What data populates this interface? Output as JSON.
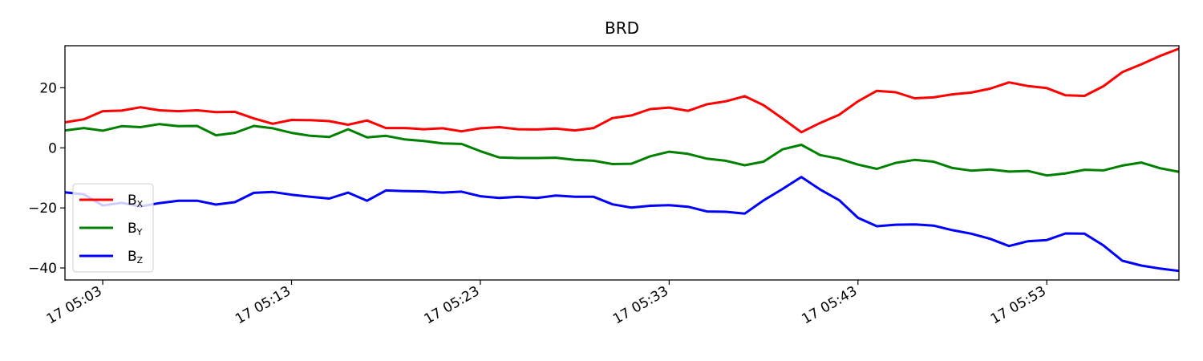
{
  "chart_data": {
    "type": "line",
    "title": "BRD",
    "xlabel": "",
    "ylabel": "",
    "x_ticks": [
      "17 05:03",
      "17 05:13",
      "17 05:23",
      "17 05:33",
      "17 05:43",
      "17 05:53"
    ],
    "y_ticks": [
      20,
      0,
      -20,
      -40
    ],
    "ylim": [
      -44,
      34
    ],
    "grid": false,
    "legend_position": "lower-left",
    "x_times": [
      "05:01",
      "05:02",
      "05:03",
      "05:04",
      "05:05",
      "05:06",
      "05:07",
      "05:08",
      "05:09",
      "05:10",
      "05:11",
      "05:12",
      "05:13",
      "05:14",
      "05:15",
      "05:16",
      "05:17",
      "05:18",
      "05:19",
      "05:20",
      "05:21",
      "05:22",
      "05:23",
      "05:24",
      "05:25",
      "05:26",
      "05:27",
      "05:28",
      "05:29",
      "05:30",
      "05:31",
      "05:32",
      "05:33",
      "05:34",
      "05:35",
      "05:36",
      "05:37",
      "05:38",
      "05:39",
      "05:40",
      "05:41",
      "05:42",
      "05:43",
      "05:44",
      "05:45",
      "05:46",
      "05:47",
      "05:48",
      "05:49",
      "05:50",
      "05:51",
      "05:52",
      "05:53",
      "05:54",
      "05:55",
      "05:56",
      "05:57",
      "05:58",
      "05:59",
      "06:00"
    ],
    "series": [
      {
        "name": "B",
        "subscript": "X",
        "color": "#ff0000",
        "values": [
          8.5,
          9.5,
          12.2,
          12.4,
          13.5,
          12.5,
          12.2,
          12.5,
          11.9,
          12.0,
          9.8,
          8.0,
          9.3,
          9.2,
          8.9,
          7.7,
          9.1,
          6.6,
          6.6,
          6.2,
          6.5,
          5.5,
          6.5,
          6.9,
          6.2,
          6.1,
          6.4,
          5.8,
          6.6,
          9.9,
          10.8,
          12.9,
          13.4,
          12.3,
          14.5,
          15.5,
          17.2,
          14.2,
          9.8,
          5.2,
          8.3,
          11.0,
          15.5,
          19.0,
          18.5,
          16.5,
          16.8,
          17.8,
          18.4,
          19.7,
          21.8,
          20.6,
          19.9,
          17.5,
          17.3,
          20.5,
          25.2,
          27.8,
          30.6,
          33.0
        ]
      },
      {
        "name": "B",
        "subscript": "Y",
        "color": "#008000",
        "values": [
          5.8,
          6.6,
          5.7,
          7.2,
          6.9,
          7.9,
          7.2,
          7.3,
          4.2,
          5.0,
          7.3,
          6.5,
          5.0,
          4.0,
          3.6,
          6.2,
          3.5,
          4.0,
          2.8,
          2.3,
          1.5,
          1.3,
          -1.1,
          -3.2,
          -3.4,
          -3.4,
          -3.3,
          -4.0,
          -4.3,
          -5.4,
          -5.3,
          -2.8,
          -1.3,
          -2.0,
          -3.6,
          -4.3,
          -5.8,
          -4.6,
          -0.5,
          1.0,
          -2.4,
          -3.6,
          -5.6,
          -7.0,
          -5.0,
          -4.0,
          -4.6,
          -6.7,
          -7.6,
          -7.2,
          -7.9,
          -7.7,
          -9.2,
          -8.5,
          -7.3,
          -7.5,
          -5.9,
          -4.9,
          -6.8,
          -8.0
        ]
      },
      {
        "name": "B",
        "subscript": "Z",
        "color": "#0000ff",
        "values": [
          -14.8,
          -15.5,
          -19.2,
          -18.3,
          -19.5,
          -18.4,
          -17.6,
          -17.6,
          -18.9,
          -18.1,
          -15.0,
          -14.7,
          -15.6,
          -16.3,
          -16.9,
          -14.9,
          -17.6,
          -14.2,
          -14.4,
          -14.5,
          -14.9,
          -14.6,
          -16.1,
          -16.7,
          -16.3,
          -16.7,
          -15.9,
          -16.3,
          -16.3,
          -18.8,
          -19.9,
          -19.3,
          -19.1,
          -19.6,
          -21.2,
          -21.3,
          -21.9,
          -17.5,
          -13.7,
          -9.7,
          -13.9,
          -17.4,
          -23.3,
          -26.1,
          -25.6,
          -25.5,
          -25.9,
          -27.4,
          -28.6,
          -30.3,
          -32.7,
          -31.1,
          -30.7,
          -28.5,
          -28.6,
          -32.5,
          -37.6,
          -39.2,
          -40.2,
          -41.0
        ]
      }
    ]
  }
}
